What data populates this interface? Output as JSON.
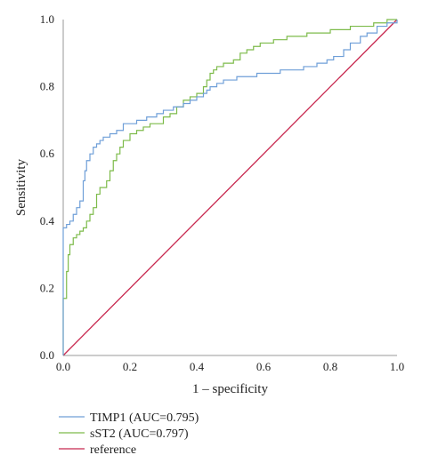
{
  "chart_data": {
    "type": "line",
    "xlabel": "1 – specificity",
    "ylabel": "Sensitivity",
    "xlim": [
      0,
      1
    ],
    "ylim": [
      0,
      1
    ],
    "x_ticks": [
      "0.0",
      "0.2",
      "0.4",
      "0.6",
      "0.8",
      "1.0"
    ],
    "y_ticks": [
      "0.0",
      "0.2",
      "0.4",
      "0.6",
      "0.8",
      "1.0"
    ],
    "grid": false,
    "legend_position": "bottom-left",
    "series": [
      {
        "name": "TIMP1 (AUC=0.795)",
        "color": "#6f9fd8",
        "points": [
          [
            0,
            0
          ],
          [
            0,
            0.38
          ],
          [
            0.01,
            0.38
          ],
          [
            0.01,
            0.39
          ],
          [
            0.02,
            0.39
          ],
          [
            0.02,
            0.4
          ],
          [
            0.03,
            0.4
          ],
          [
            0.03,
            0.42
          ],
          [
            0.04,
            0.42
          ],
          [
            0.04,
            0.44
          ],
          [
            0.05,
            0.44
          ],
          [
            0.05,
            0.46
          ],
          [
            0.06,
            0.46
          ],
          [
            0.06,
            0.52
          ],
          [
            0.065,
            0.52
          ],
          [
            0.065,
            0.55
          ],
          [
            0.07,
            0.55
          ],
          [
            0.07,
            0.58
          ],
          [
            0.08,
            0.58
          ],
          [
            0.08,
            0.6
          ],
          [
            0.09,
            0.6
          ],
          [
            0.09,
            0.62
          ],
          [
            0.1,
            0.62
          ],
          [
            0.1,
            0.63
          ],
          [
            0.11,
            0.63
          ],
          [
            0.11,
            0.64
          ],
          [
            0.12,
            0.64
          ],
          [
            0.12,
            0.65
          ],
          [
            0.14,
            0.65
          ],
          [
            0.14,
            0.66
          ],
          [
            0.16,
            0.66
          ],
          [
            0.16,
            0.67
          ],
          [
            0.18,
            0.67
          ],
          [
            0.18,
            0.69
          ],
          [
            0.22,
            0.69
          ],
          [
            0.22,
            0.7
          ],
          [
            0.25,
            0.7
          ],
          [
            0.25,
            0.71
          ],
          [
            0.28,
            0.71
          ],
          [
            0.28,
            0.72
          ],
          [
            0.3,
            0.72
          ],
          [
            0.3,
            0.73
          ],
          [
            0.33,
            0.73
          ],
          [
            0.33,
            0.74
          ],
          [
            0.36,
            0.74
          ],
          [
            0.36,
            0.75
          ],
          [
            0.38,
            0.75
          ],
          [
            0.38,
            0.76
          ],
          [
            0.4,
            0.76
          ],
          [
            0.4,
            0.77
          ],
          [
            0.42,
            0.77
          ],
          [
            0.42,
            0.78
          ],
          [
            0.43,
            0.78
          ],
          [
            0.43,
            0.79
          ],
          [
            0.44,
            0.79
          ],
          [
            0.44,
            0.8
          ],
          [
            0.46,
            0.8
          ],
          [
            0.46,
            0.81
          ],
          [
            0.48,
            0.81
          ],
          [
            0.48,
            0.82
          ],
          [
            0.52,
            0.82
          ],
          [
            0.52,
            0.83
          ],
          [
            0.58,
            0.83
          ],
          [
            0.58,
            0.84
          ],
          [
            0.65,
            0.84
          ],
          [
            0.65,
            0.85
          ],
          [
            0.72,
            0.85
          ],
          [
            0.72,
            0.86
          ],
          [
            0.76,
            0.86
          ],
          [
            0.76,
            0.87
          ],
          [
            0.79,
            0.87
          ],
          [
            0.79,
            0.88
          ],
          [
            0.81,
            0.88
          ],
          [
            0.81,
            0.89
          ],
          [
            0.84,
            0.89
          ],
          [
            0.84,
            0.91
          ],
          [
            0.86,
            0.91
          ],
          [
            0.86,
            0.93
          ],
          [
            0.89,
            0.93
          ],
          [
            0.89,
            0.95
          ],
          [
            0.91,
            0.95
          ],
          [
            0.91,
            0.96
          ],
          [
            0.94,
            0.96
          ],
          [
            0.94,
            0.98
          ],
          [
            0.97,
            0.98
          ],
          [
            0.97,
            0.99
          ],
          [
            1.0,
            0.99
          ],
          [
            1.0,
            1.0
          ]
        ]
      },
      {
        "name": "sST2 (AUC=0.797)",
        "color": "#7dbb4a",
        "points": [
          [
            0,
            0
          ],
          [
            0,
            0.17
          ],
          [
            0.01,
            0.17
          ],
          [
            0.01,
            0.25
          ],
          [
            0.015,
            0.25
          ],
          [
            0.015,
            0.3
          ],
          [
            0.02,
            0.3
          ],
          [
            0.02,
            0.33
          ],
          [
            0.03,
            0.33
          ],
          [
            0.03,
            0.35
          ],
          [
            0.04,
            0.35
          ],
          [
            0.04,
            0.36
          ],
          [
            0.05,
            0.36
          ],
          [
            0.05,
            0.37
          ],
          [
            0.06,
            0.37
          ],
          [
            0.06,
            0.38
          ],
          [
            0.07,
            0.38
          ],
          [
            0.07,
            0.4
          ],
          [
            0.08,
            0.4
          ],
          [
            0.08,
            0.42
          ],
          [
            0.09,
            0.42
          ],
          [
            0.09,
            0.44
          ],
          [
            0.1,
            0.44
          ],
          [
            0.1,
            0.48
          ],
          [
            0.11,
            0.48
          ],
          [
            0.11,
            0.5
          ],
          [
            0.13,
            0.5
          ],
          [
            0.13,
            0.52
          ],
          [
            0.14,
            0.52
          ],
          [
            0.14,
            0.55
          ],
          [
            0.15,
            0.55
          ],
          [
            0.15,
            0.58
          ],
          [
            0.16,
            0.58
          ],
          [
            0.16,
            0.6
          ],
          [
            0.17,
            0.6
          ],
          [
            0.17,
            0.62
          ],
          [
            0.18,
            0.62
          ],
          [
            0.18,
            0.64
          ],
          [
            0.2,
            0.64
          ],
          [
            0.2,
            0.66
          ],
          [
            0.22,
            0.66
          ],
          [
            0.22,
            0.67
          ],
          [
            0.24,
            0.67
          ],
          [
            0.24,
            0.68
          ],
          [
            0.26,
            0.68
          ],
          [
            0.26,
            0.69
          ],
          [
            0.3,
            0.69
          ],
          [
            0.3,
            0.71
          ],
          [
            0.32,
            0.71
          ],
          [
            0.32,
            0.72
          ],
          [
            0.34,
            0.72
          ],
          [
            0.34,
            0.74
          ],
          [
            0.36,
            0.74
          ],
          [
            0.36,
            0.76
          ],
          [
            0.38,
            0.76
          ],
          [
            0.38,
            0.77
          ],
          [
            0.4,
            0.77
          ],
          [
            0.4,
            0.78
          ],
          [
            0.42,
            0.78
          ],
          [
            0.42,
            0.8
          ],
          [
            0.43,
            0.8
          ],
          [
            0.43,
            0.82
          ],
          [
            0.44,
            0.82
          ],
          [
            0.44,
            0.84
          ],
          [
            0.45,
            0.84
          ],
          [
            0.45,
            0.85
          ],
          [
            0.46,
            0.85
          ],
          [
            0.46,
            0.86
          ],
          [
            0.48,
            0.86
          ],
          [
            0.48,
            0.87
          ],
          [
            0.51,
            0.87
          ],
          [
            0.51,
            0.88
          ],
          [
            0.53,
            0.88
          ],
          [
            0.53,
            0.9
          ],
          [
            0.55,
            0.9
          ],
          [
            0.55,
            0.91
          ],
          [
            0.57,
            0.91
          ],
          [
            0.57,
            0.92
          ],
          [
            0.59,
            0.92
          ],
          [
            0.59,
            0.93
          ],
          [
            0.63,
            0.93
          ],
          [
            0.63,
            0.94
          ],
          [
            0.67,
            0.94
          ],
          [
            0.67,
            0.95
          ],
          [
            0.73,
            0.95
          ],
          [
            0.73,
            0.96
          ],
          [
            0.8,
            0.96
          ],
          [
            0.8,
            0.97
          ],
          [
            0.86,
            0.97
          ],
          [
            0.86,
            0.98
          ],
          [
            0.93,
            0.98
          ],
          [
            0.93,
            0.99
          ],
          [
            0.97,
            0.99
          ],
          [
            0.97,
            1.0
          ],
          [
            1.0,
            1.0
          ]
        ]
      },
      {
        "name": "reference",
        "color": "#c8284f",
        "points": [
          [
            0,
            0
          ],
          [
            1,
            1
          ]
        ]
      }
    ]
  }
}
